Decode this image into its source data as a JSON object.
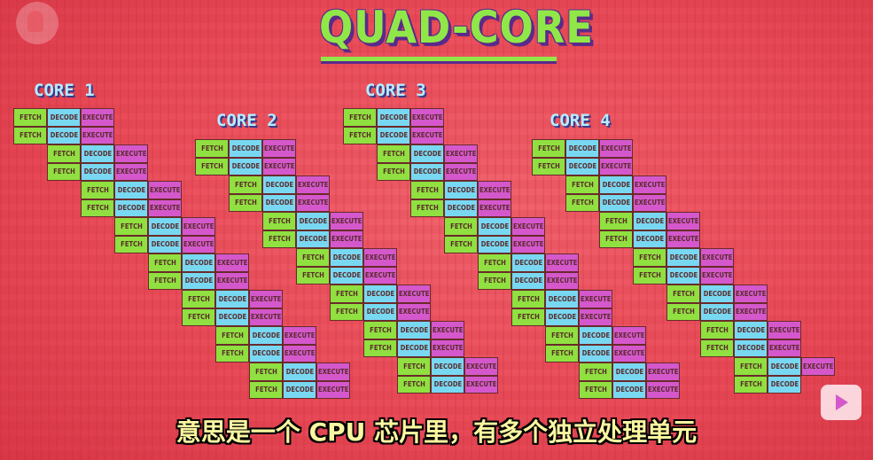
{
  "title": "QUAD-CORE",
  "cores": [
    {
      "label": "CORE 1"
    },
    {
      "label": "CORE 2"
    },
    {
      "label": "CORE 3"
    },
    {
      "label": "CORE 4"
    }
  ],
  "stages": [
    "FETCH",
    "DECODE",
    "EXECUTE"
  ],
  "subtitle": "意思是一个 CPU 芯片里，有多个独立处理单元",
  "colors": {
    "fetch": "#8fe040",
    "decode": "#78d8f2",
    "execute": "#d458cc",
    "background": "#e84a58",
    "title": "#90e848"
  }
}
